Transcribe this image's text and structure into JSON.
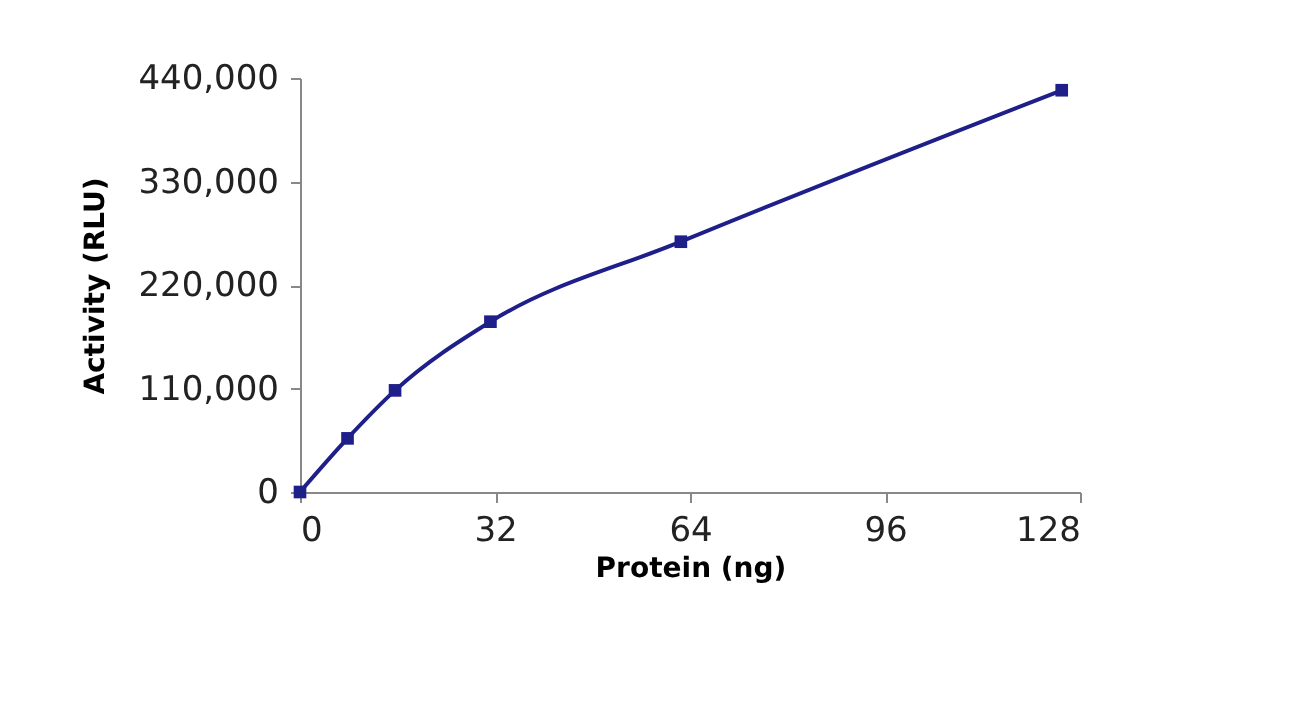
{
  "chart_data": {
    "type": "line",
    "xlabel": "Protein (ng)",
    "ylabel": "Activity (RLU)",
    "x": [
      0,
      7.8,
      15.6,
      31.25,
      62.5,
      125
    ],
    "series": [
      {
        "color": "#1f1f8a",
        "values": [
          0,
          57000,
          108000,
          181000,
          266000,
          427000
        ]
      }
    ],
    "xlim": [
      0,
      128
    ],
    "xticks": [
      0,
      32,
      64,
      96,
      128
    ],
    "ylim": [
      0,
      440000
    ],
    "yticks": [
      {
        "value": 0,
        "label": "0"
      },
      {
        "value": 110000,
        "label": "110,000"
      },
      {
        "value": 220000,
        "label": "220,000"
      },
      {
        "value": 330000,
        "label": "330,000"
      },
      {
        "value": 440000,
        "label": "440,000"
      }
    ],
    "grid": false,
    "marker": "square",
    "line_style": "solid"
  }
}
